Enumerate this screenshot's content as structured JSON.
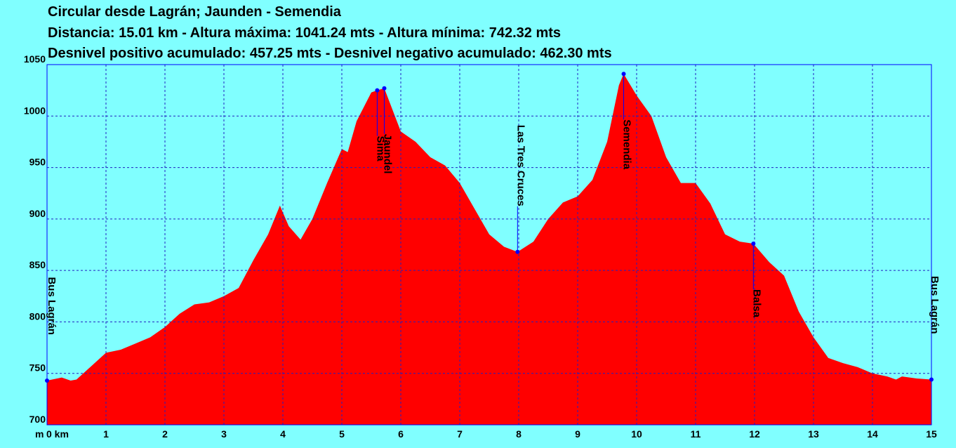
{
  "chart_data": {
    "type": "area",
    "title": "Circular desde Lagrán; Jaunden - Semendia",
    "subtitles": [
      "Distancia: 15.01 km - Altura máxima: 1041.24 mts - Altura mínima: 742.32 mts",
      "Desnivel positivo acumulado: 457.25 mts - Desnivel negativo acumulado: 462.30 mts"
    ],
    "y_label": "m",
    "color": "#ff0000",
    "grid": true,
    "x": [
      0,
      0.25,
      0.4,
      0.5,
      0.75,
      1.0,
      1.25,
      1.5,
      1.75,
      2.0,
      2.25,
      2.5,
      2.75,
      3.0,
      3.25,
      3.5,
      3.75,
      3.95,
      4.1,
      4.3,
      4.5,
      4.75,
      5.0,
      5.1,
      5.25,
      5.5,
      5.6,
      5.72,
      5.9,
      6.0,
      6.25,
      6.5,
      6.75,
      7.0,
      7.25,
      7.5,
      7.75,
      7.98,
      8.25,
      8.5,
      8.75,
      9.0,
      9.25,
      9.5,
      9.7,
      9.78,
      10.0,
      10.25,
      10.5,
      10.75,
      11.0,
      11.25,
      11.5,
      11.75,
      11.98,
      12.25,
      12.5,
      12.75,
      13.0,
      13.25,
      13.5,
      13.75,
      14.0,
      14.25,
      14.4,
      14.5,
      14.75,
      15.0
    ],
    "values": [
      743,
      746,
      743,
      744,
      757,
      770,
      773,
      779,
      785,
      795,
      808,
      817,
      819,
      825,
      833,
      860,
      885,
      913,
      893,
      880,
      900,
      935,
      968,
      965,
      995,
      1023,
      1025,
      1027,
      1000,
      985,
      975,
      960,
      952,
      935,
      910,
      885,
      873,
      868,
      878,
      900,
      916,
      922,
      938,
      975,
      1030,
      1041,
      1020,
      1000,
      960,
      935,
      935,
      915,
      885,
      878,
      876,
      858,
      845,
      810,
      785,
      765,
      760,
      756,
      750,
      747,
      744,
      747,
      745,
      744
    ],
    "xlim": [
      0,
      15
    ],
    "ylim": [
      700,
      1050
    ],
    "xticks": [
      {
        "value": 0,
        "label": "0 km"
      },
      1,
      2,
      3,
      4,
      5,
      6,
      7,
      8,
      9,
      10,
      11,
      12,
      13,
      14,
      15
    ],
    "yticks": [
      700,
      750,
      800,
      850,
      900,
      950,
      1000,
      1050
    ],
    "annotations": [
      {
        "label": "Bus Lagrán",
        "x": 0,
        "y": 743
      },
      {
        "label": "Sima",
        "x": 5.6,
        "y": 1025
      },
      {
        "label": "Jaundel",
        "x": 5.72,
        "y": 1027
      },
      {
        "label": "Las Tres Cruces",
        "x": 7.98,
        "y": 868
      },
      {
        "label": "Semendia",
        "x": 9.78,
        "y": 1041
      },
      {
        "label": "Balsa",
        "x": 11.98,
        "y": 876
      },
      {
        "label": "Bus Lagrán",
        "x": 15,
        "y": 744
      }
    ]
  }
}
